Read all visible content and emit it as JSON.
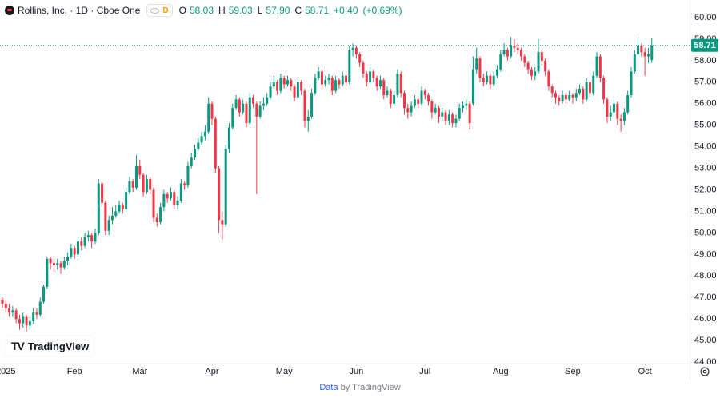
{
  "header": {
    "title": "Rollins, Inc. · 1D · Cboe One",
    "badge": "D",
    "ohlc": [
      {
        "key": "O",
        "value": 58.03,
        "label": "58.03"
      },
      {
        "key": "H",
        "value": 59.03,
        "label": "59.03"
      },
      {
        "key": "L",
        "value": 57.9,
        "label": "57.90"
      },
      {
        "key": "C",
        "value": 58.71,
        "label": "58.71"
      }
    ],
    "change": {
      "value": 0.4,
      "label": "+0.40"
    },
    "change_pct": {
      "value": 0.69,
      "label": "(+0.69%)"
    }
  },
  "brand": "TradingView",
  "footer": {
    "data": "Data",
    "by": "by TradingView"
  },
  "chart_data": {
    "type": "candlestick",
    "up_color": "#089981",
    "down_color": "#f23645",
    "grid": false,
    "open": [
      46.9,
      46.7,
      46.5,
      46.3,
      46.4,
      46.0,
      45.8,
      46.1,
      45.7,
      45.9,
      46.3,
      46.2,
      46.8,
      47.5,
      48.8,
      48.6,
      48.5,
      48.6,
      48.4,
      48.7,
      48.9,
      49.3,
      49.0,
      49.6,
      49.4,
      49.8,
      49.9,
      49.6,
      50.0,
      52.3,
      51.4,
      50.1,
      50.6,
      50.8,
      51.0,
      51.3,
      51.1,
      51.9,
      52.4,
      52.1,
      53.1,
      52.7,
      51.9,
      52.5,
      52.0,
      50.7,
      50.5,
      51.2,
      51.8,
      51.6,
      51.9,
      51.3,
      51.5,
      52.3,
      52.2,
      53.1,
      53.5,
      53.9,
      54.2,
      54.5,
      54.7,
      56.0,
      55.3,
      53.0,
      50.6,
      50.4,
      53.9,
      54.9,
      55.8,
      56.2,
      55.6,
      56.0,
      55.1,
      56.3,
      56.0,
      55.4,
      55.9,
      56.0,
      56.3,
      56.8,
      57.0,
      56.6,
      57.2,
      56.9,
      57.1,
      56.8,
      56.3,
      57.0,
      56.6,
      55.2,
      55.4,
      56.5,
      57.2,
      57.5,
      56.9,
      57.1,
      57.2,
      56.6,
      57.1,
      56.9,
      57.3,
      57.0,
      58.5,
      58.6,
      58.3,
      57.9,
      57.4,
      57.0,
      57.5,
      57.2,
      56.8,
      57.1,
      56.4,
      56.6,
      56.0,
      56.4,
      57.4,
      56.5,
      55.8,
      55.6,
      55.9,
      56.2,
      56.0,
      56.6,
      56.4,
      56.1,
      55.6,
      55.8,
      55.4,
      55.6,
      55.2,
      55.5,
      55.1,
      55.3,
      55.8,
      55.9,
      56.0,
      56.0,
      57.6,
      58.1,
      57.2,
      57.0,
      57.3,
      56.9,
      57.3,
      57.6,
      58.3,
      58.5,
      58.2,
      58.7,
      58.6,
      58.5,
      58.2,
      57.9,
      57.6,
      57.3,
      57.5,
      58.4,
      58.0,
      57.5,
      56.8,
      56.5,
      56.3,
      56.1,
      56.4,
      56.2,
      56.4,
      56.3,
      56.5,
      56.7,
      56.2,
      57.0,
      56.5,
      57.3,
      58.2,
      57.2,
      56.2,
      55.4,
      55.6,
      56.0,
      55.3,
      55.2,
      55.6,
      56.4,
      57.5,
      58.3,
      58.7,
      58.4,
      58.2,
      58.03
    ],
    "high": [
      47.0,
      46.9,
      46.7,
      46.6,
      46.5,
      46.2,
      46.3,
      46.2,
      46.1,
      46.5,
      46.5,
      47.0,
      47.6,
      48.9,
      48.9,
      48.8,
      48.8,
      48.7,
      48.9,
      49.1,
      49.5,
      49.4,
      49.8,
      49.8,
      50.0,
      50.1,
      50.0,
      50.2,
      52.5,
      52.4,
      51.5,
      50.8,
      51.2,
      51.3,
      51.5,
      51.4,
      52.1,
      52.6,
      52.5,
      53.6,
      53.4,
      52.8,
      52.7,
      52.6,
      52.1,
      50.9,
      51.4,
      52.0,
      51.9,
      52.1,
      52.0,
      51.7,
      52.5,
      52.4,
      53.3,
      53.7,
      54.1,
      54.4,
      54.7,
      55.0,
      56.3,
      56.1,
      55.4,
      53.1,
      51.0,
      54.1,
      55.1,
      56.0,
      56.4,
      56.3,
      56.2,
      56.1,
      56.5,
      56.4,
      56.1,
      56.1,
      56.3,
      56.5,
      57.0,
      57.3,
      57.1,
      57.4,
      57.3,
      57.3,
      57.2,
      56.9,
      57.2,
      57.1,
      56.7,
      55.7,
      56.7,
      57.4,
      57.7,
      57.6,
      57.3,
      57.4,
      57.3,
      57.3,
      57.2,
      57.5,
      57.4,
      58.7,
      58.8,
      58.7,
      58.4,
      58.0,
      57.5,
      57.7,
      57.6,
      57.3,
      57.3,
      57.2,
      56.8,
      56.7,
      56.6,
      57.6,
      57.5,
      56.6,
      56.0,
      56.1,
      56.4,
      56.3,
      56.8,
      56.7,
      56.5,
      56.2,
      56.0,
      55.9,
      55.8,
      55.7,
      55.7,
      55.6,
      55.5,
      56.0,
      56.1,
      56.2,
      56.1,
      58.2,
      58.6,
      58.2,
      57.4,
      57.5,
      57.4,
      57.5,
      57.8,
      58.5,
      58.8,
      58.6,
      59.1,
      59.0,
      58.8,
      58.6,
      58.3,
      58.0,
      57.7,
      57.7,
      59.0,
      58.5,
      58.1,
      57.6,
      56.9,
      56.6,
      56.4,
      56.6,
      56.5,
      56.6,
      56.5,
      56.7,
      56.9,
      56.8,
      57.2,
      57.1,
      57.5,
      58.4,
      58.3,
      57.3,
      56.3,
      55.9,
      56.2,
      56.1,
      55.5,
      55.8,
      56.6,
      57.7,
      58.5,
      59.1,
      58.8,
      58.6,
      58.6,
      59.03
    ],
    "low": [
      46.5,
      46.3,
      46.1,
      46.1,
      45.8,
      45.5,
      45.6,
      45.4,
      45.5,
      45.8,
      46.0,
      46.1,
      46.7,
      47.4,
      48.3,
      48.2,
      48.3,
      48.1,
      48.3,
      48.5,
      48.8,
      48.8,
      48.9,
      49.2,
      49.3,
      49.6,
      49.3,
      49.5,
      49.9,
      51.2,
      49.9,
      49.9,
      50.4,
      50.7,
      50.9,
      50.9,
      51.0,
      51.8,
      51.9,
      52.0,
      52.5,
      51.7,
      51.8,
      51.8,
      50.5,
      50.3,
      50.4,
      51.0,
      51.4,
      51.5,
      51.1,
      51.1,
      51.4,
      52.0,
      52.1,
      53.0,
      53.4,
      53.8,
      54.1,
      54.3,
      54.6,
      55.0,
      52.8,
      50.0,
      49.7,
      50.3,
      53.7,
      54.8,
      55.7,
      55.4,
      55.5,
      54.9,
      55.0,
      55.8,
      51.8,
      55.3,
      55.7,
      55.9,
      56.2,
      56.7,
      56.4,
      56.5,
      56.7,
      56.8,
      56.6,
      56.1,
      56.2,
      56.4,
      54.9,
      54.7,
      55.3,
      56.4,
      57.1,
      56.7,
      56.8,
      56.9,
      56.4,
      56.5,
      56.7,
      56.8,
      56.8,
      56.9,
      58.2,
      58.1,
      57.7,
      57.2,
      56.8,
      56.9,
      57.0,
      56.6,
      56.7,
      56.2,
      56.3,
      55.8,
      55.9,
      56.3,
      56.3,
      55.5,
      55.3,
      55.4,
      55.8,
      55.8,
      55.9,
      56.2,
      55.9,
      55.3,
      55.5,
      55.1,
      55.2,
      55.0,
      55.0,
      54.9,
      54.9,
      55.2,
      55.6,
      55.7,
      54.8,
      55.9,
      57.4,
      57.0,
      56.8,
      56.9,
      56.7,
      56.8,
      57.2,
      57.5,
      58.2,
      58.0,
      58.1,
      58.4,
      58.3,
      58.0,
      57.7,
      57.4,
      57.1,
      57.1,
      57.4,
      57.8,
      57.3,
      56.6,
      56.3,
      56.0,
      55.9,
      56.0,
      56.0,
      56.1,
      56.0,
      56.1,
      56.4,
      56.0,
      56.1,
      56.3,
      56.4,
      57.2,
      57.0,
      56.0,
      55.1,
      55.2,
      55.4,
      55.0,
      54.7,
      55.0,
      55.5,
      56.3,
      57.4,
      58.2,
      58.2,
      57.3,
      57.9,
      57.9
    ],
    "close": [
      46.7,
      46.5,
      46.3,
      46.4,
      46.0,
      45.8,
      46.1,
      45.7,
      45.9,
      46.3,
      46.2,
      46.8,
      47.5,
      48.8,
      48.6,
      48.5,
      48.6,
      48.4,
      48.7,
      48.9,
      49.3,
      49.0,
      49.6,
      49.4,
      49.8,
      49.9,
      49.6,
      50.0,
      52.3,
      51.4,
      50.1,
      50.6,
      50.8,
      51.0,
      51.3,
      51.1,
      51.9,
      52.4,
      52.1,
      53.1,
      52.7,
      51.9,
      52.5,
      52.0,
      50.7,
      50.5,
      51.2,
      51.8,
      51.6,
      51.9,
      51.3,
      51.5,
      52.3,
      52.2,
      53.1,
      53.5,
      53.9,
      54.2,
      54.5,
      54.7,
      56.0,
      55.3,
      53.0,
      50.6,
      50.4,
      53.9,
      54.9,
      55.8,
      56.2,
      55.6,
      56.0,
      55.1,
      56.3,
      56.0,
      55.4,
      55.9,
      56.0,
      56.3,
      56.8,
      57.0,
      56.6,
      57.2,
      56.9,
      57.1,
      56.8,
      56.3,
      57.0,
      56.6,
      55.2,
      55.4,
      56.5,
      57.2,
      57.5,
      56.9,
      57.1,
      57.2,
      56.6,
      57.1,
      56.9,
      57.3,
      57.0,
      58.5,
      58.6,
      58.3,
      57.9,
      57.4,
      57.0,
      57.5,
      57.2,
      56.8,
      57.1,
      56.4,
      56.6,
      56.0,
      56.4,
      57.4,
      56.5,
      55.8,
      55.6,
      55.9,
      56.2,
      56.0,
      56.6,
      56.4,
      56.1,
      55.6,
      55.8,
      55.4,
      55.6,
      55.2,
      55.5,
      55.1,
      55.3,
      55.8,
      55.9,
      56.0,
      55.1,
      57.6,
      58.1,
      57.2,
      57.0,
      57.3,
      56.9,
      57.3,
      57.6,
      58.3,
      58.5,
      58.2,
      58.7,
      58.6,
      58.5,
      58.2,
      57.9,
      57.6,
      57.3,
      57.5,
      58.4,
      58.0,
      57.5,
      56.8,
      56.5,
      56.3,
      56.1,
      56.4,
      56.2,
      56.4,
      56.3,
      56.5,
      56.7,
      56.2,
      57.0,
      56.5,
      57.3,
      58.2,
      57.2,
      56.2,
      55.4,
      55.6,
      56.0,
      55.3,
      55.2,
      55.6,
      56.4,
      57.5,
      58.3,
      58.7,
      58.4,
      58.2,
      58.31,
      58.71
    ],
    "xlim": [
      -0.7,
      200
    ],
    "xticks": [
      {
        "value": 1,
        "label": "2025"
      },
      {
        "value": 21,
        "label": "Feb"
      },
      {
        "value": 40,
        "label": "Mar"
      },
      {
        "value": 61,
        "label": "Apr"
      },
      {
        "value": 82,
        "label": "May"
      },
      {
        "value": 103,
        "label": "Jun"
      },
      {
        "value": 123,
        "label": "Jul"
      },
      {
        "value": 145,
        "label": "Aug"
      },
      {
        "value": 166,
        "label": "Sep"
      },
      {
        "value": 187,
        "label": "Oct"
      }
    ],
    "ylim": [
      43.93,
      60.52
    ],
    "yticks": [
      {
        "value": 44,
        "label": "44.00"
      },
      {
        "value": 45,
        "label": "45.00"
      },
      {
        "value": 46,
        "label": "46.00"
      },
      {
        "value": 47,
        "label": "47.00"
      },
      {
        "value": 48,
        "label": "48.00"
      },
      {
        "value": 49,
        "label": "49.00"
      },
      {
        "value": 50,
        "label": "50.00"
      },
      {
        "value": 51,
        "label": "51.00"
      },
      {
        "value": 52,
        "label": "52.00"
      },
      {
        "value": 53,
        "label": "53.00"
      },
      {
        "value": 54,
        "label": "54.00"
      },
      {
        "value": 55,
        "label": "55.00"
      },
      {
        "value": 56,
        "label": "56.00"
      },
      {
        "value": 57,
        "label": "57.00"
      },
      {
        "value": 58,
        "label": "58.00"
      },
      {
        "value": 59,
        "label": "59.00"
      },
      {
        "value": 60,
        "label": "60.00"
      }
    ],
    "last_price": 58.71
  }
}
